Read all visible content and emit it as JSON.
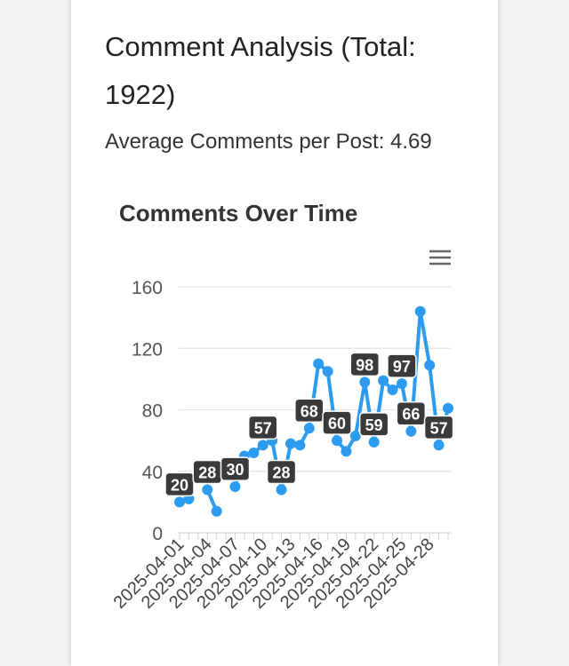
{
  "page": {
    "title": "Comment Analysis (Total: 1922)",
    "average": "Average Comments per Post: 4.69"
  },
  "chart_data": {
    "type": "line",
    "title": "Comments Over Time",
    "xlabel": "",
    "ylabel": "",
    "ylim": [
      0,
      160
    ],
    "yticks": [
      0,
      40,
      80,
      120,
      160
    ],
    "grid": true,
    "line_color": "#2d9cf0",
    "label_bg": "#3a3a3a",
    "x": [
      "2025-04-01",
      "2025-04-02",
      "2025-04-03",
      "2025-04-04",
      "2025-04-05",
      "2025-04-06",
      "2025-04-07",
      "2025-04-08",
      "2025-04-09",
      "2025-04-10",
      "2025-04-11",
      "2025-04-12",
      "2025-04-13",
      "2025-04-14",
      "2025-04-15",
      "2025-04-16",
      "2025-04-17",
      "2025-04-18",
      "2025-04-19",
      "2025-04-20",
      "2025-04-21",
      "2025-04-22",
      "2025-04-23",
      "2025-04-24",
      "2025-04-25",
      "2025-04-26",
      "2025-04-27",
      "2025-04-28",
      "2025-04-29",
      "2025-04-30"
    ],
    "x_tick_labels": [
      "2025-04-01",
      "2025-04-04",
      "2025-04-07",
      "2025-04-10",
      "2025-04-13",
      "2025-04-16",
      "2025-04-19",
      "2025-04-22",
      "2025-04-25",
      "2025-04-28"
    ],
    "values": [
      20,
      22,
      null,
      28,
      14,
      null,
      30,
      50,
      52,
      57,
      60,
      28,
      58,
      57,
      68,
      110,
      105,
      60,
      53,
      63,
      98,
      59,
      99,
      93,
      97,
      66,
      144,
      109,
      57,
      81
    ],
    "data_labels": [
      {
        "index": 0,
        "text": "20"
      },
      {
        "index": 3,
        "text": "28"
      },
      {
        "index": 6,
        "text": "30"
      },
      {
        "index": 9,
        "text": "57"
      },
      {
        "index": 11,
        "text": "28"
      },
      {
        "index": 14,
        "text": "68"
      },
      {
        "index": 17,
        "text": "60"
      },
      {
        "index": 20,
        "text": "98"
      },
      {
        "index": 21,
        "text": "59"
      },
      {
        "index": 24,
        "text": "97"
      },
      {
        "index": 25,
        "text": "66"
      },
      {
        "index": 28,
        "text": "57"
      }
    ],
    "menu_icon": "hamburger-icon"
  }
}
